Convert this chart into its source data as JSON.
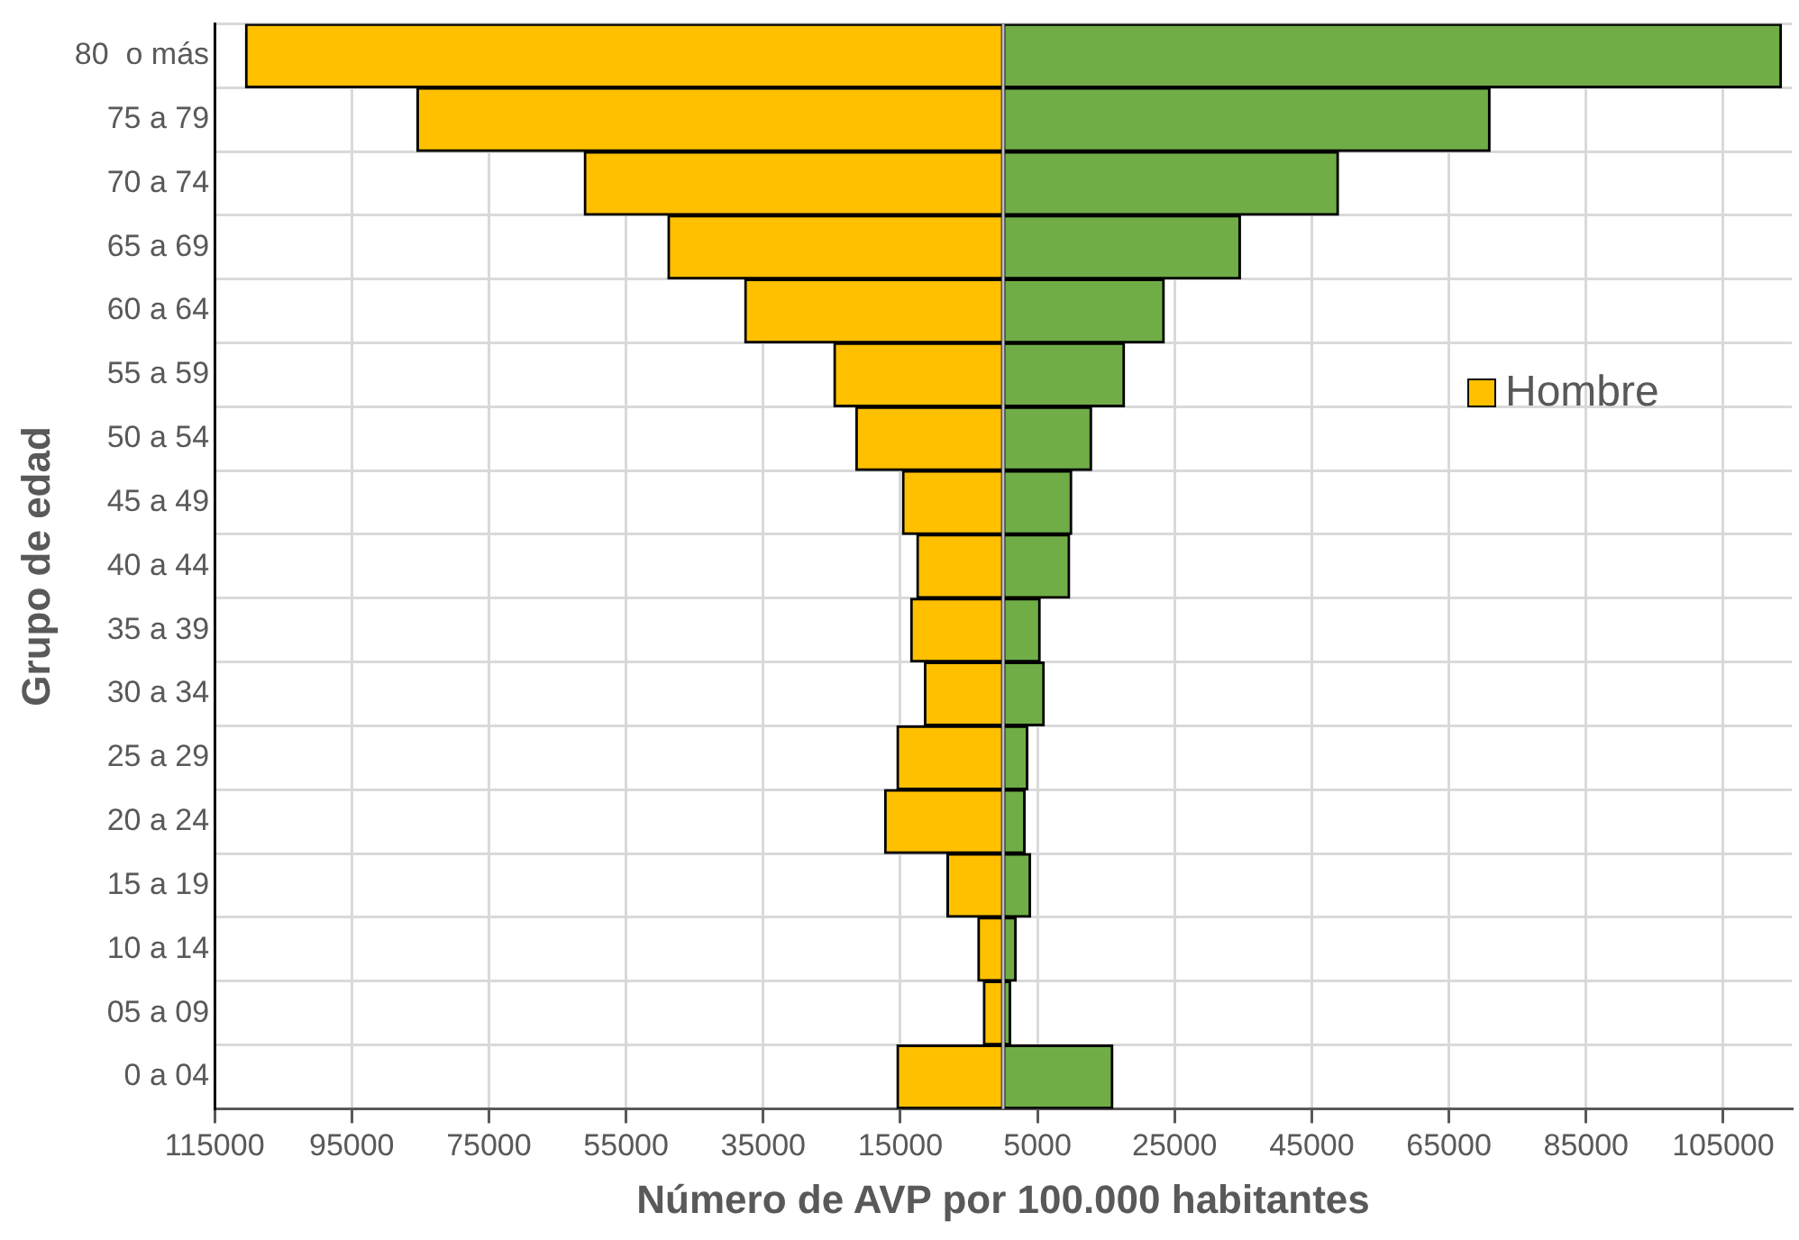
{
  "chart_data": {
    "type": "bar",
    "orientation": "horizontal",
    "stacked": true,
    "xlabel": "Número de AVP por 100.000 habitantes",
    "ylabel": "Grupo de edad",
    "categories": [
      "80  o más",
      "75 a 79",
      "70 a 74",
      "65 a 69",
      "60 a 64",
      "55 a 59",
      "50 a 54",
      "45 a 49",
      "40 a 44",
      "35 a 39",
      "30 a 34",
      "25 a 29",
      "20 a 24",
      "15 a 19",
      "10 a 14",
      "05 a 09",
      "0 a 04"
    ],
    "series": [
      {
        "name": "Hombre",
        "color": "#ffc000",
        "values": [
          -110500,
          -85500,
          -61100,
          -48900,
          -37700,
          -24700,
          -21500,
          -14700,
          -12600,
          -13500,
          -11500,
          -15500,
          -17300,
          -8200,
          -3700,
          -2900,
          -15500
        ]
      },
      {
        "color": "#70ad47",
        "values": [
          113500,
          71000,
          48900,
          34600,
          23500,
          17700,
          12900,
          10000,
          9700,
          5400,
          6000,
          3600,
          3200,
          4000,
          1900,
          1100,
          16000
        ]
      }
    ],
    "xlim": [
      -115000,
      115000
    ],
    "xticks": [
      {
        "value": -115000,
        "label": "115000"
      },
      {
        "value": -95000,
        "label": "95000"
      },
      {
        "value": -75000,
        "label": "75000"
      },
      {
        "value": -55000,
        "label": "55000"
      },
      {
        "value": -35000,
        "label": "35000"
      },
      {
        "value": -15000,
        "label": "15000"
      },
      5000,
      25000,
      45000,
      65000,
      85000,
      105000
    ],
    "grid": true,
    "legend": "right"
  }
}
